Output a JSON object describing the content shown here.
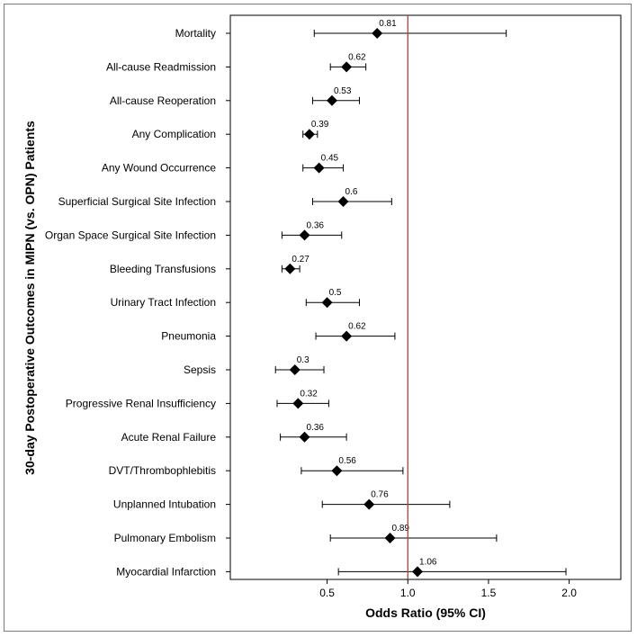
{
  "chart_data": {
    "type": "forest",
    "xlabel": "Odds Ratio (95% CI)",
    "ylabel": "30-day Postoperative Outcomes in MIPN (vs. OPN) Patients",
    "xlim": [
      -0.1,
      2.32
    ],
    "xticks": [
      "0.5",
      "1.0",
      "1.5",
      "2.0"
    ],
    "xtick_values": [
      0.5,
      1.0,
      1.5,
      2.0
    ],
    "reference_line": 1.0,
    "reference_color": "#c0392b",
    "marker_color": "#000000",
    "rows": [
      {
        "label": "Mortality",
        "or": 0.81,
        "or_label": "0.81",
        "ci": [
          0.42,
          1.61
        ]
      },
      {
        "label": "All-cause Readmission",
        "or": 0.62,
        "or_label": "0.62",
        "ci": [
          0.52,
          0.74
        ]
      },
      {
        "label": "All-cause Reoperation",
        "or": 0.53,
        "or_label": "0.53",
        "ci": [
          0.41,
          0.7
        ]
      },
      {
        "label": "Any Complication",
        "or": 0.39,
        "or_label": "0.39",
        "ci": [
          0.35,
          0.44
        ]
      },
      {
        "label": "Any Wound Occurrence",
        "or": 0.45,
        "or_label": "0.45",
        "ci": [
          0.35,
          0.6
        ]
      },
      {
        "label": "Superficial Surgical Site Infection",
        "or": 0.6,
        "or_label": "0.6",
        "ci": [
          0.41,
          0.9
        ]
      },
      {
        "label": "Organ Space Surgical Site Infection",
        "or": 0.36,
        "or_label": "0.36",
        "ci": [
          0.22,
          0.59
        ]
      },
      {
        "label": "Bleeding Transfusions",
        "or": 0.27,
        "or_label": "0.27",
        "ci": [
          0.22,
          0.33
        ]
      },
      {
        "label": "Urinary Tract Infection",
        "or": 0.5,
        "or_label": "0.5",
        "ci": [
          0.37,
          0.7
        ]
      },
      {
        "label": "Pneumonia",
        "or": 0.62,
        "or_label": "0.62",
        "ci": [
          0.43,
          0.92
        ]
      },
      {
        "label": "Sepsis",
        "or": 0.3,
        "or_label": "0.3",
        "ci": [
          0.18,
          0.48
        ]
      },
      {
        "label": "Progressive Renal Insufficiency",
        "or": 0.32,
        "or_label": "0.32",
        "ci": [
          0.19,
          0.51
        ]
      },
      {
        "label": "Acute Renal Failure",
        "or": 0.36,
        "or_label": "0.36",
        "ci": [
          0.21,
          0.62
        ]
      },
      {
        "label": "DVT/Thrombophlebitis",
        "or": 0.56,
        "or_label": "0.56",
        "ci": [
          0.34,
          0.97
        ]
      },
      {
        "label": "Unplanned Intubation",
        "or": 0.76,
        "or_label": "0.76",
        "ci": [
          0.47,
          1.26
        ]
      },
      {
        "label": "Pulmonary Embolism",
        "or": 0.89,
        "or_label": "0.89",
        "ci": [
          0.52,
          1.55
        ]
      },
      {
        "label": "Myocardial Infarction",
        "or": 1.06,
        "or_label": "1.06",
        "ci": [
          0.57,
          1.98
        ]
      }
    ]
  }
}
